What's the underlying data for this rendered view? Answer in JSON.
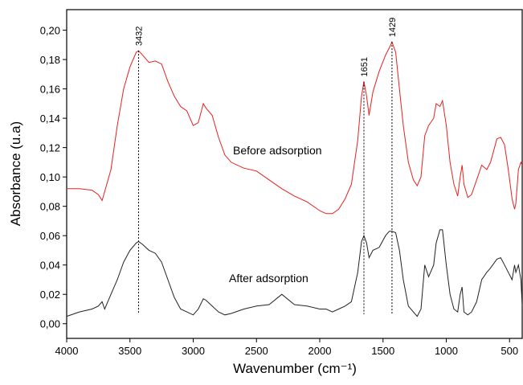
{
  "chart_data": {
    "type": "line",
    "xlabel": "Wavenumber (cm⁻¹)",
    "ylabel": "Absorbance (u.a)",
    "xlim": [
      4000,
      400
    ],
    "ylim": [
      -0.01,
      0.214
    ],
    "xticks": [
      4000,
      3500,
      3000,
      2500,
      2000,
      1500,
      1000,
      500
    ],
    "yticks": [
      {
        "value": 0,
        "label": "0,00"
      },
      {
        "value": 0.02,
        "label": "0,02"
      },
      {
        "value": 0.04,
        "label": "0,04"
      },
      {
        "value": 0.06,
        "label": "0,06"
      },
      {
        "value": 0.08,
        "label": "0,08"
      },
      {
        "value": 0.1,
        "label": "0,10"
      },
      {
        "value": 0.12,
        "label": "0,12"
      },
      {
        "value": 0.14,
        "label": "0,14"
      },
      {
        "value": 0.16,
        "label": "0,16"
      },
      {
        "value": 0.18,
        "label": "0,18"
      },
      {
        "value": 0.2,
        "label": "0,20"
      }
    ],
    "x": [
      4000,
      3900,
      3800,
      3750,
      3720,
      3700,
      3650,
      3600,
      3550,
      3500,
      3450,
      3432,
      3400,
      3350,
      3300,
      3250,
      3200,
      3150,
      3100,
      3050,
      3000,
      2960,
      2920,
      2900,
      2850,
      2800,
      2750,
      2700,
      2600,
      2500,
      2400,
      2300,
      2200,
      2100,
      2000,
      1950,
      1900,
      1850,
      1800,
      1750,
      1700,
      1670,
      1651,
      1630,
      1610,
      1580,
      1530,
      1480,
      1450,
      1429,
      1400,
      1370,
      1340,
      1300,
      1260,
      1230,
      1200,
      1170,
      1140,
      1100,
      1080,
      1050,
      1030,
      1000,
      970,
      940,
      910,
      890,
      875,
      860,
      830,
      800,
      760,
      720,
      680,
      650,
      600,
      570,
      540,
      510,
      480,
      460,
      450,
      430,
      410,
      400
    ],
    "series": [
      {
        "name": "Before adsorption",
        "color": "#e8201e",
        "values": [
          0.092,
          0.092,
          0.091,
          0.088,
          0.084,
          0.09,
          0.105,
          0.135,
          0.16,
          0.175,
          0.185,
          0.186,
          0.183,
          0.178,
          0.179,
          0.177,
          0.165,
          0.155,
          0.148,
          0.145,
          0.135,
          0.137,
          0.15,
          0.147,
          0.142,
          0.127,
          0.115,
          0.11,
          0.106,
          0.104,
          0.098,
          0.092,
          0.087,
          0.083,
          0.077,
          0.075,
          0.075,
          0.078,
          0.085,
          0.095,
          0.125,
          0.155,
          0.165,
          0.155,
          0.142,
          0.158,
          0.172,
          0.183,
          0.188,
          0.192,
          0.185,
          0.16,
          0.135,
          0.11,
          0.098,
          0.094,
          0.1,
          0.128,
          0.135,
          0.14,
          0.15,
          0.148,
          0.152,
          0.135,
          0.11,
          0.095,
          0.087,
          0.1,
          0.108,
          0.095,
          0.086,
          0.088,
          0.098,
          0.108,
          0.105,
          0.11,
          0.126,
          0.127,
          0.122,
          0.105,
          0.085,
          0.078,
          0.082,
          0.105,
          0.11,
          0.108
        ]
      },
      {
        "name": "After adsorption",
        "color": "#222222",
        "values": [
          0.005,
          0.008,
          0.01,
          0.012,
          0.015,
          0.01,
          0.02,
          0.03,
          0.042,
          0.05,
          0.055,
          0.056,
          0.054,
          0.05,
          0.048,
          0.042,
          0.03,
          0.018,
          0.01,
          0.008,
          0.006,
          0.01,
          0.017,
          0.016,
          0.012,
          0.008,
          0.006,
          0.007,
          0.01,
          0.012,
          0.013,
          0.02,
          0.013,
          0.012,
          0.01,
          0.01,
          0.008,
          0.01,
          0.012,
          0.015,
          0.035,
          0.056,
          0.06,
          0.055,
          0.045,
          0.05,
          0.052,
          0.06,
          0.063,
          0.063,
          0.062,
          0.05,
          0.03,
          0.012,
          0.008,
          0.005,
          0.01,
          0.04,
          0.032,
          0.04,
          0.055,
          0.064,
          0.064,
          0.04,
          0.02,
          0.01,
          0.008,
          0.02,
          0.025,
          0.008,
          0.006,
          0.008,
          0.015,
          0.03,
          0.035,
          0.038,
          0.044,
          0.045,
          0.04,
          0.035,
          0.03,
          0.04,
          0.035,
          0.04,
          0.03,
          0.012
        ]
      }
    ],
    "annotations": [
      {
        "text": "3432",
        "x": 3432
      },
      {
        "text": "1651",
        "x": 1651
      },
      {
        "text": "1429",
        "x": 1429
      }
    ]
  }
}
